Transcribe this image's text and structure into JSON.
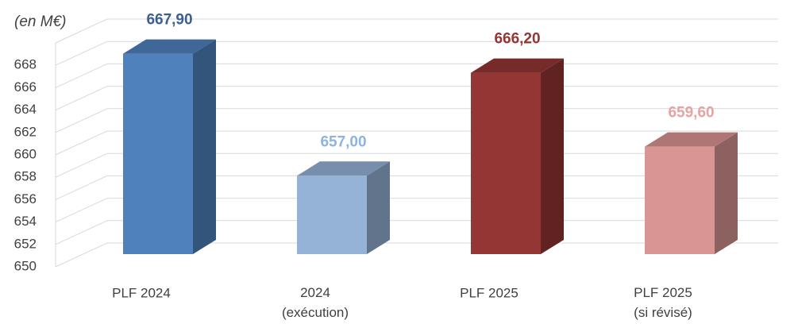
{
  "chart_data": {
    "type": "bar3d",
    "y_label": "(en M€)",
    "categories": [
      "PLF 2024",
      "2024\n(exécution)",
      "PLF 2025",
      "PLF 2025\n(si révisé)"
    ],
    "values": [
      667.9,
      657.0,
      666.2,
      659.6
    ],
    "value_labels": [
      "667,90",
      "657,00",
      "666,20",
      "659,60"
    ],
    "colors": [
      "#4f81bd",
      "#95b3d7",
      "#943634",
      "#d99594"
    ],
    "label_colors": [
      "#3a5f8f",
      "#8db3e2",
      "#943634",
      "#e6a3a3"
    ],
    "ylim": [
      650,
      670
    ],
    "yticks": [
      650,
      652,
      654,
      656,
      658,
      660,
      662,
      664,
      666,
      668
    ],
    "grid": true
  }
}
